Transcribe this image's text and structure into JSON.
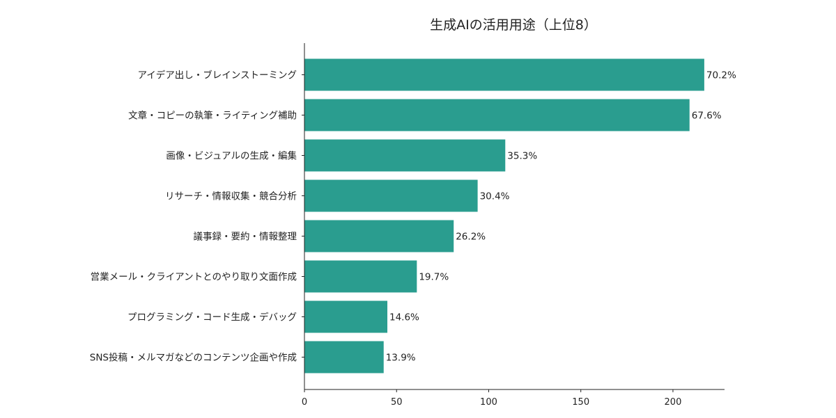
{
  "chart_data": {
    "type": "bar",
    "orientation": "horizontal",
    "title": "生成AIの活用用途（上位8）",
    "xlabel": "",
    "ylabel": "",
    "categories": [
      "アイデア出し・ブレインストーミング",
      "文章・コピーの執筆・ライティング補助",
      "画像・ビジュアルの生成・編集",
      "リサーチ・情報収集・競合分析",
      "議事録・要約・情報整理",
      "営業メール・クライアントとのやり取り文面作成",
      "プログラミング・コード生成・デバッグ",
      "SNS投稿・メルマガなどのコンテンツ企画や作成"
    ],
    "values": [
      217,
      209,
      109,
      94,
      81,
      61,
      45,
      43
    ],
    "value_labels": [
      "70.2%",
      "67.6%",
      "35.3%",
      "30.4%",
      "26.2%",
      "19.7%",
      "14.6%",
      "13.9%"
    ],
    "xlim": [
      0,
      228
    ],
    "xticks": [
      0,
      50,
      100,
      150,
      200
    ],
    "bar_color": "#2a9d8f",
    "grid": false,
    "legend": "none"
  }
}
